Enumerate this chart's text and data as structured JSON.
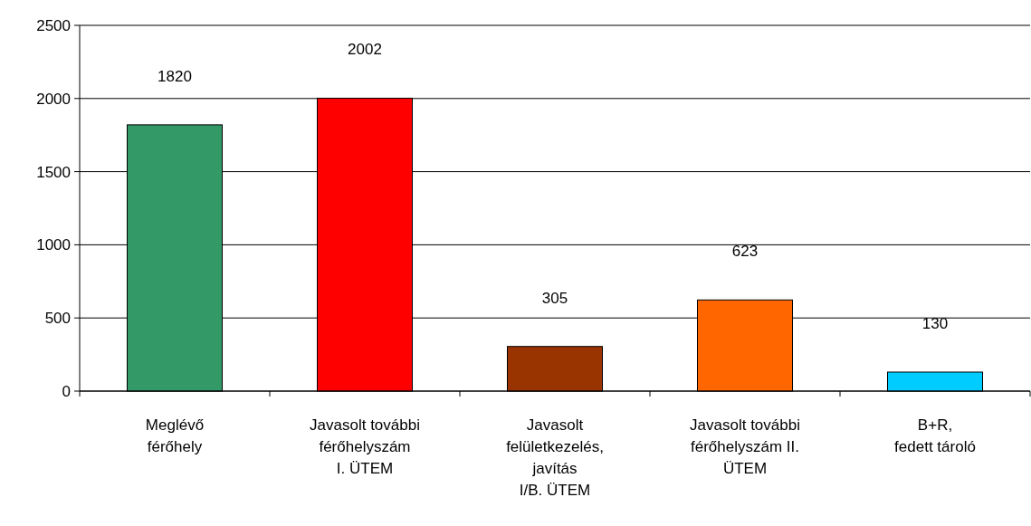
{
  "chart_data": {
    "type": "bar",
    "categories": [
      "Meglévő\nférőhely",
      "Javasolt további\nférőhelyszám\nI. ÜTEM",
      "Javasolt\nfelületkezelés,\njavítás\nI/B. ÜTEM",
      "Javasolt további\nférőhelyszám II.\nÜTEM",
      "B+R,\nfedett tároló"
    ],
    "values": [
      1820,
      2002,
      305,
      623,
      130
    ],
    "colors": [
      "#339966",
      "#ff0000",
      "#993300",
      "#ff6600",
      "#00ccff"
    ],
    "ylim": [
      0,
      2500
    ],
    "yticks": [
      0,
      500,
      1000,
      1500,
      2000,
      2500
    ],
    "grid": "y",
    "data_labels": true
  }
}
